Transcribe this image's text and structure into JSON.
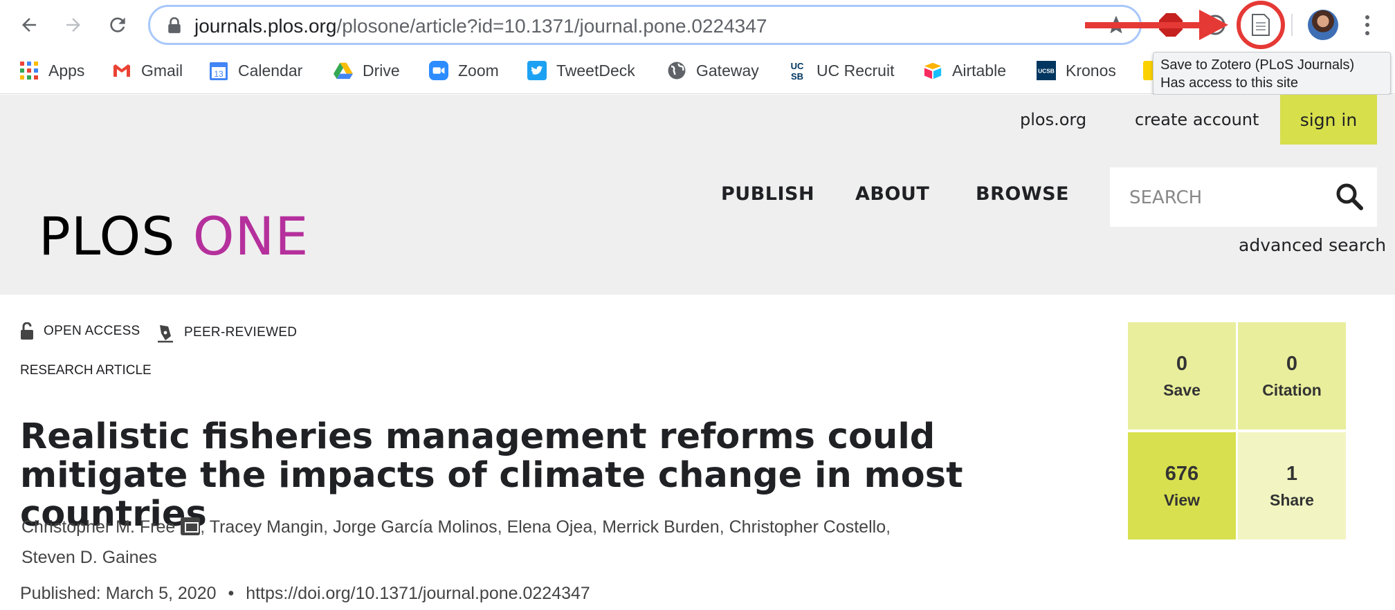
{
  "browser": {
    "url_host": "journals.plos.org",
    "url_path": "/plosone/article?id=10.1371/journal.pone.0224347",
    "extension_abp_label": "ABP",
    "tooltip_line1": "Save to Zotero (PLoS Journals)",
    "tooltip_line2": "Has access to this site",
    "accent_color": "#e53935"
  },
  "bookmarks": [
    {
      "label": "Apps",
      "icon": "apps-grid-icon"
    },
    {
      "label": "Gmail",
      "icon": "gmail-icon"
    },
    {
      "label": "Calendar",
      "icon": "calendar-icon",
      "icon_text": "13"
    },
    {
      "label": "Drive",
      "icon": "drive-icon"
    },
    {
      "label": "Zoom",
      "icon": "zoom-icon"
    },
    {
      "label": "TweetDeck",
      "icon": "twitter-icon"
    },
    {
      "label": "Gateway",
      "icon": "globe-icon"
    },
    {
      "label": "UC Recruit",
      "icon": "ucsb-icon",
      "icon_text": "UC SB"
    },
    {
      "label": "Airtable",
      "icon": "airtable-icon"
    },
    {
      "label": "Kronos",
      "icon": "ucsb-kronos-icon",
      "icon_text": "UCSB"
    }
  ],
  "site": {
    "top_links": [
      "plos.org",
      "create account"
    ],
    "sign_in": "sign in",
    "nav": [
      "PUBLISH",
      "ABOUT",
      "BROWSE"
    ],
    "search_placeholder": "SEARCH",
    "advanced_search": "advanced search",
    "logo_part1": "PLOS",
    "logo_part2": "ONE",
    "brand_color": "#b5309c",
    "highlight_color": "#d7df4b"
  },
  "article": {
    "badges": [
      "OPEN ACCESS",
      "PEER-REVIEWED"
    ],
    "type": "RESEARCH ARTICLE",
    "title": "Realistic fisheries management reforms could mitigate the impacts of climate change in most countries",
    "authors": [
      "Christopher M. Free",
      "Tracey Mangin",
      "Jorge García Molinos",
      "Elena Ojea",
      "Merrick Burden",
      "Christopher Costello",
      "Steven D. Gaines"
    ],
    "published": "Published: March 5, 2020",
    "separator": "•",
    "doi": "https://doi.org/10.1371/journal.pone.0224347"
  },
  "metrics": [
    {
      "value": "0",
      "label": "Save",
      "color": "#e9ee9c"
    },
    {
      "value": "0",
      "label": "Citation",
      "color": "#e9ee9c"
    },
    {
      "value": "676",
      "label": "View",
      "color": "#d8e04f"
    },
    {
      "value": "1",
      "label": "Share",
      "color": "#f2f5c2"
    }
  ]
}
